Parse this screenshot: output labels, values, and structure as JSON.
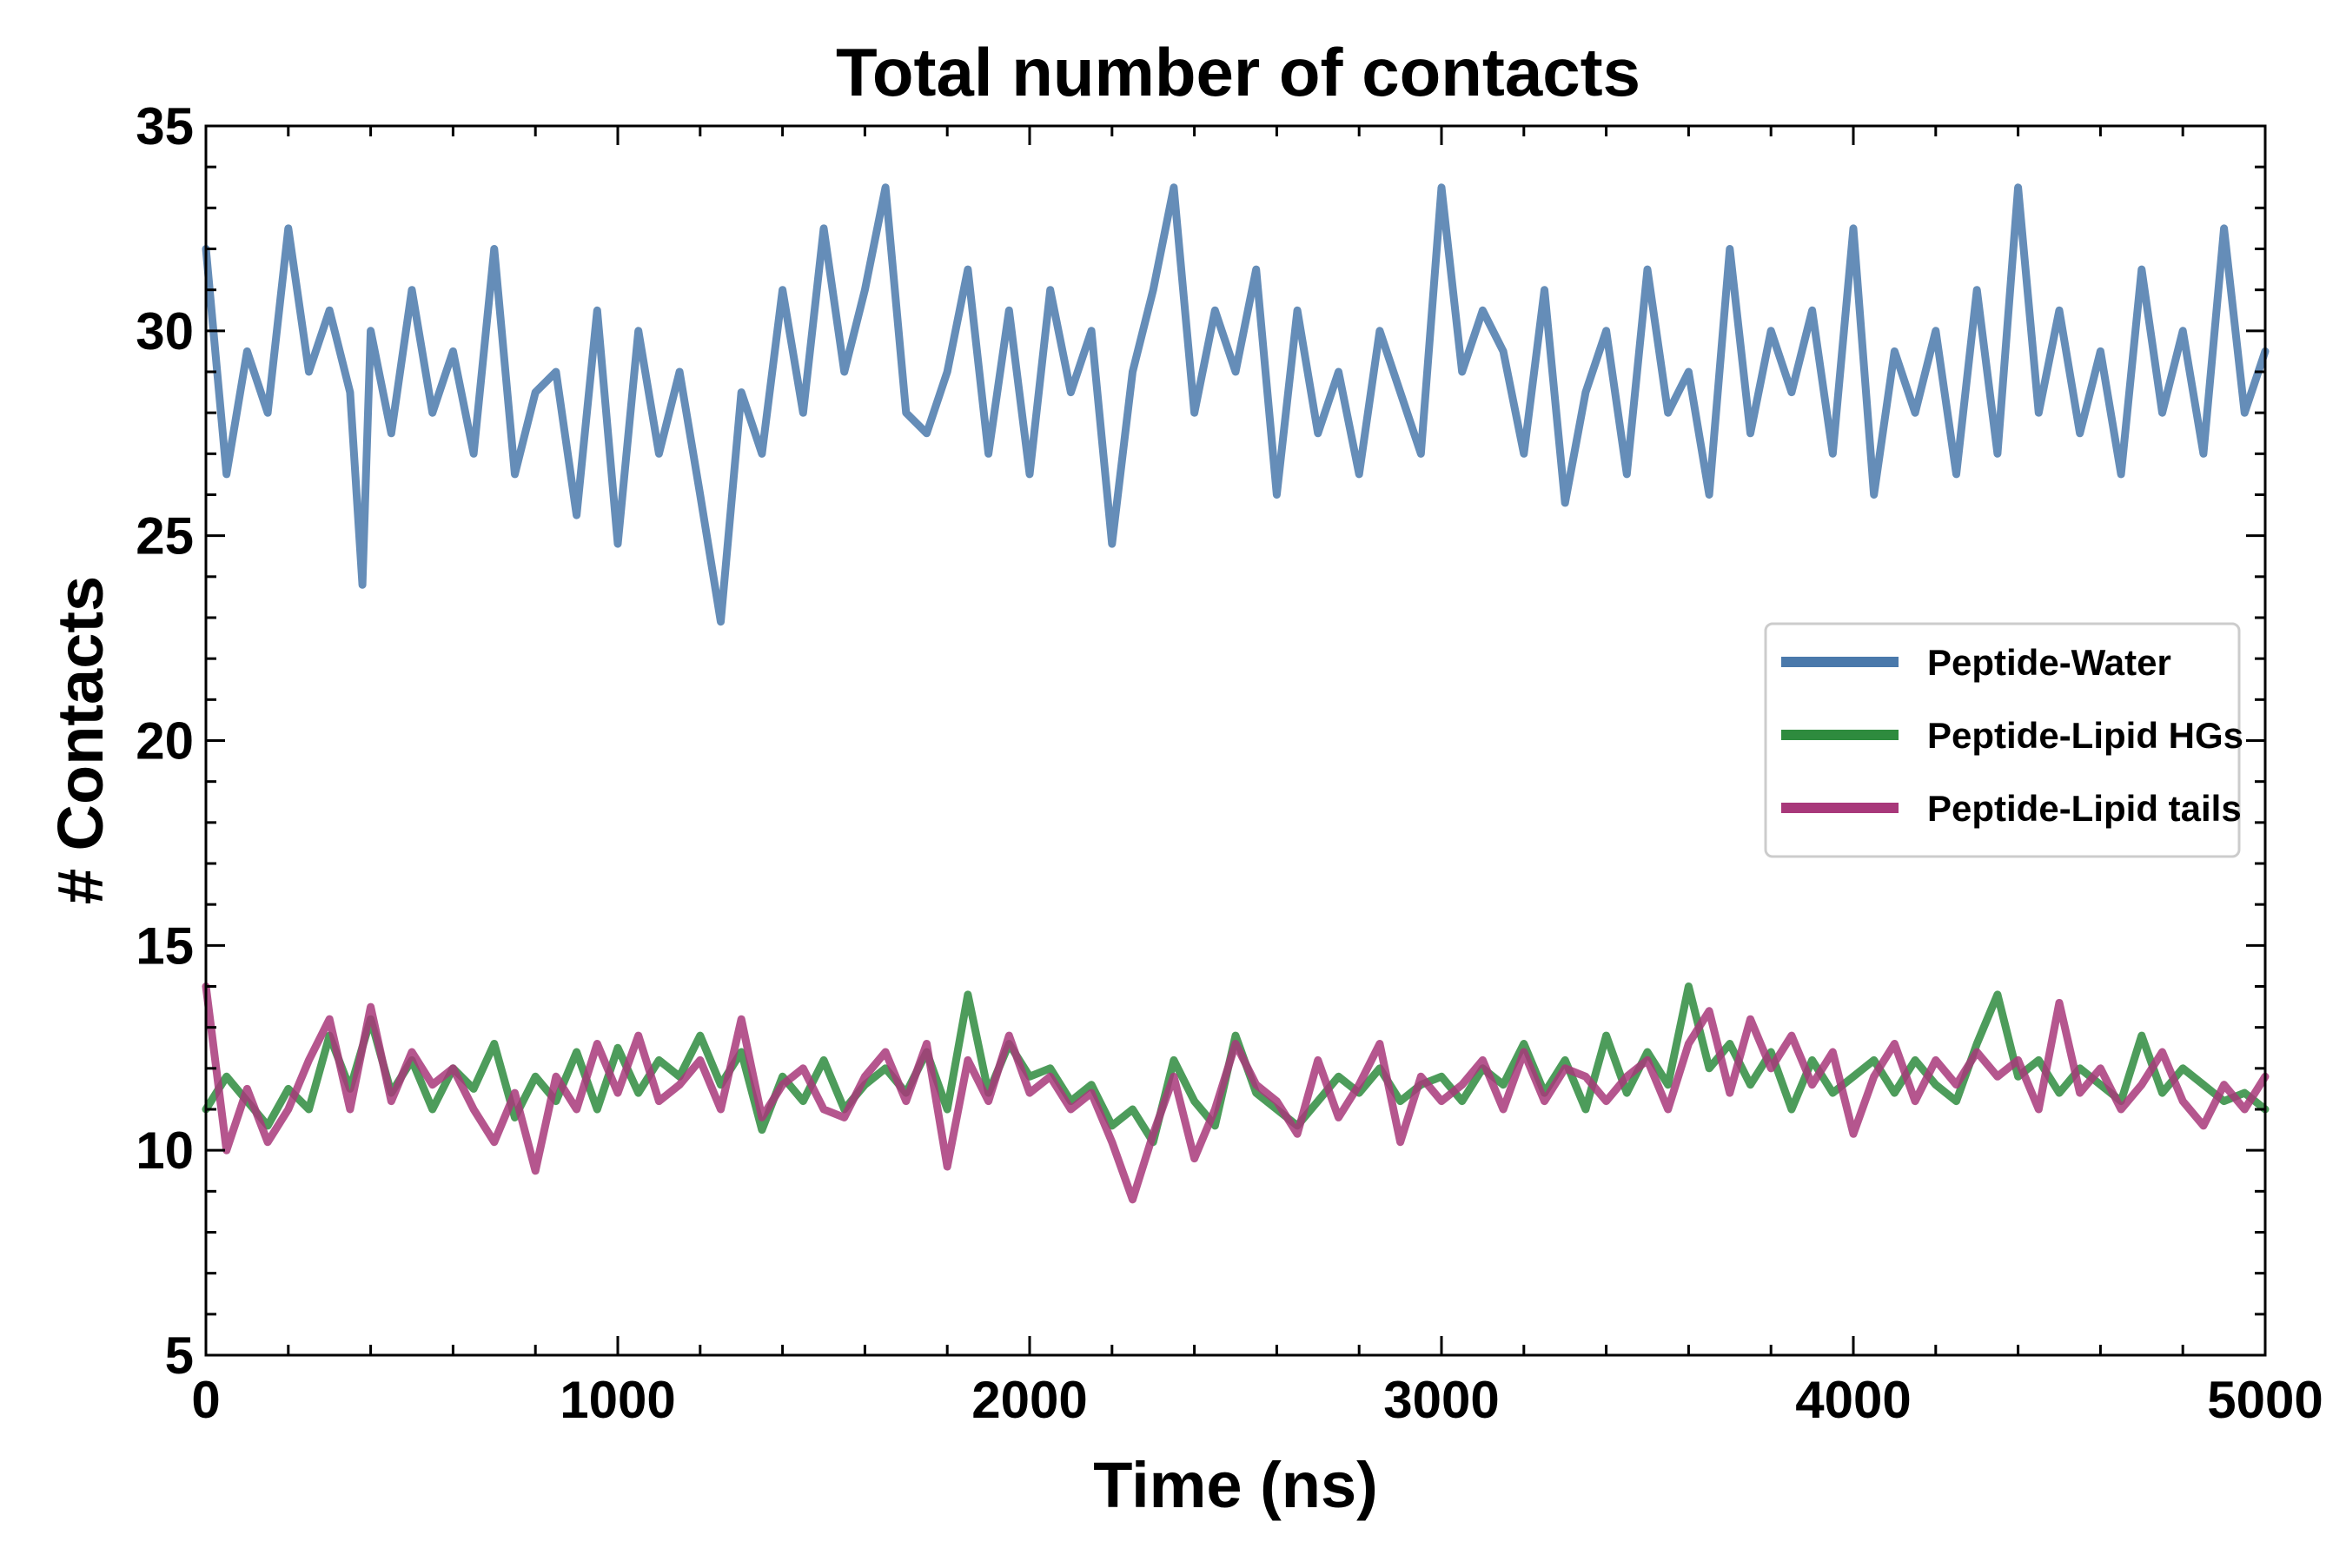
{
  "chart_data": {
    "type": "line",
    "title": "Total number of contacts",
    "xlabel": "Time (ns)",
    "ylabel": "# Contacts",
    "xlim": [
      0,
      5000
    ],
    "ylim": [
      5,
      35
    ],
    "xticks": [
      0,
      1000,
      2000,
      3000,
      4000,
      5000
    ],
    "xtick_labels": [
      "0",
      "1000",
      "2000",
      "3000",
      "4000",
      "5000"
    ],
    "yticks": [
      5,
      10,
      15,
      20,
      25,
      30,
      35
    ],
    "ytick_labels": [
      "5",
      "10",
      "15",
      "20",
      "25",
      "30",
      "35"
    ],
    "grid": false,
    "legend_position": "center-right",
    "series": [
      {
        "name": "Peptide-Water",
        "color": "#4a79ab",
        "x": [
          0,
          50,
          100,
          150,
          200,
          250,
          300,
          350,
          380,
          400,
          450,
          500,
          550,
          600,
          650,
          700,
          750,
          800,
          850,
          900,
          950,
          1000,
          1050,
          1100,
          1150,
          1200,
          1250,
          1300,
          1350,
          1400,
          1450,
          1500,
          1550,
          1600,
          1650,
          1700,
          1750,
          1800,
          1850,
          1900,
          1950,
          2000,
          2050,
          2100,
          2150,
          2200,
          2250,
          2300,
          2350,
          2400,
          2450,
          2500,
          2550,
          2600,
          2650,
          2700,
          2750,
          2800,
          2850,
          2900,
          2950,
          3000,
          3050,
          3100,
          3150,
          3200,
          3250,
          3300,
          3350,
          3400,
          3450,
          3500,
          3550,
          3600,
          3650,
          3700,
          3750,
          3800,
          3850,
          3900,
          3950,
          4000,
          4050,
          4100,
          4150,
          4200,
          4250,
          4300,
          4350,
          4400,
          4450,
          4500,
          4550,
          4600,
          4650,
          4700,
          4750,
          4800,
          4850,
          4900,
          4950,
          5000
        ],
        "y": [
          32,
          26.5,
          29.5,
          28,
          32.5,
          29,
          30.5,
          28.5,
          23.8,
          30,
          27.5,
          31,
          28,
          29.5,
          27,
          32,
          26.5,
          28.5,
          29,
          25.5,
          30.5,
          24.8,
          30,
          27,
          29,
          26,
          22.9,
          28.5,
          27,
          31,
          28,
          32.5,
          29,
          31,
          33.5,
          28,
          27.5,
          29,
          31.5,
          27,
          30.5,
          26.5,
          31,
          28.5,
          30,
          24.8,
          29,
          31,
          33.5,
          28,
          30.5,
          29,
          31.5,
          26,
          30.5,
          27.5,
          29,
          26.5,
          30,
          28.5,
          27,
          33.5,
          29,
          30.5,
          29.5,
          27,
          31,
          25.8,
          28.5,
          30,
          26.5,
          31.5,
          28,
          29,
          26,
          32,
          27.5,
          30,
          28.5,
          30.5,
          27,
          32.5,
          26,
          29.5,
          28,
          30,
          26.5,
          31,
          27,
          33.5,
          28,
          30.5,
          27.5,
          29.5,
          26.5,
          31.5,
          28,
          30,
          27,
          32.5,
          28,
          29.5
        ]
      },
      {
        "name": "Peptide-Lipid HGs",
        "color": "#2e8b3e",
        "x": [
          0,
          50,
          100,
          150,
          200,
          250,
          300,
          350,
          400,
          450,
          500,
          550,
          600,
          650,
          700,
          750,
          800,
          850,
          900,
          950,
          1000,
          1050,
          1100,
          1150,
          1200,
          1250,
          1300,
          1350,
          1400,
          1450,
          1500,
          1550,
          1600,
          1650,
          1700,
          1750,
          1800,
          1850,
          1900,
          1950,
          2000,
          2050,
          2100,
          2150,
          2200,
          2250,
          2300,
          2350,
          2400,
          2450,
          2500,
          2550,
          2600,
          2650,
          2700,
          2750,
          2800,
          2850,
          2900,
          2950,
          3000,
          3050,
          3100,
          3150,
          3200,
          3250,
          3300,
          3350,
          3400,
          3450,
          3500,
          3550,
          3600,
          3650,
          3700,
          3750,
          3800,
          3850,
          3900,
          3950,
          4000,
          4050,
          4100,
          4150,
          4200,
          4250,
          4300,
          4350,
          4400,
          4450,
          4500,
          4550,
          4600,
          4650,
          4700,
          4750,
          4800,
          4850,
          4900,
          4950,
          5000
        ],
        "y": [
          11,
          11.8,
          11.2,
          10.6,
          11.5,
          11,
          12.8,
          11.5,
          13.2,
          11.4,
          12.2,
          11,
          12,
          11.5,
          12.6,
          10.8,
          11.8,
          11.2,
          12.4,
          11,
          12.5,
          11.4,
          12.2,
          11.8,
          12.8,
          11.6,
          12.4,
          10.5,
          11.8,
          11.2,
          12.2,
          11,
          11.6,
          12,
          11.4,
          12.4,
          11,
          13.8,
          11.4,
          12.6,
          11.8,
          12,
          11.2,
          11.6,
          10.6,
          11,
          10.2,
          12.2,
          11.2,
          10.6,
          12.8,
          11.4,
          11,
          10.6,
          11.2,
          11.8,
          11.4,
          12,
          11.2,
          11.6,
          11.8,
          11.2,
          12,
          11.6,
          12.6,
          11.4,
          12.2,
          11,
          12.8,
          11.4,
          12.4,
          11.6,
          14,
          12,
          12.6,
          11.6,
          12.4,
          11,
          12.2,
          11.4,
          11.8,
          12.2,
          11.4,
          12.2,
          11.6,
          11.2,
          12.6,
          13.8,
          11.8,
          12.2,
          11.4,
          12,
          11.6,
          11.2,
          12.8,
          11.4,
          12,
          11.6,
          11.2,
          11.4,
          11
        ]
      },
      {
        "name": "Peptide-Lipid tails",
        "color": "#a8387a",
        "x": [
          0,
          50,
          100,
          150,
          200,
          250,
          300,
          350,
          400,
          450,
          500,
          550,
          600,
          650,
          700,
          750,
          800,
          850,
          900,
          950,
          1000,
          1050,
          1100,
          1150,
          1200,
          1250,
          1300,
          1350,
          1400,
          1450,
          1500,
          1550,
          1600,
          1650,
          1700,
          1750,
          1800,
          1850,
          1900,
          1950,
          2000,
          2050,
          2100,
          2150,
          2200,
          2250,
          2300,
          2350,
          2400,
          2450,
          2500,
          2550,
          2600,
          2650,
          2700,
          2750,
          2800,
          2850,
          2900,
          2950,
          3000,
          3050,
          3100,
          3150,
          3200,
          3250,
          3300,
          3350,
          3400,
          3450,
          3500,
          3550,
          3600,
          3650,
          3700,
          3750,
          3800,
          3850,
          3900,
          3950,
          4000,
          4050,
          4100,
          4150,
          4200,
          4250,
          4300,
          4350,
          4400,
          4450,
          4500,
          4550,
          4600,
          4650,
          4700,
          4750,
          4800,
          4850,
          4900,
          4950,
          5000
        ],
        "y": [
          14,
          10,
          11.5,
          10.2,
          11,
          12.2,
          13.2,
          11,
          13.5,
          11.2,
          12.4,
          11.6,
          12,
          11,
          10.2,
          11.4,
          9.5,
          11.8,
          11,
          12.6,
          11.4,
          12.8,
          11.2,
          11.6,
          12.2,
          11,
          13.2,
          10.8,
          11.6,
          12,
          11,
          10.8,
          11.8,
          12.4,
          11.2,
          12.6,
          9.6,
          12.2,
          11.2,
          12.8,
          11.4,
          11.8,
          11,
          11.4,
          10.2,
          8.8,
          10.4,
          11.8,
          9.8,
          11,
          12.6,
          11.6,
          11.2,
          10.4,
          12.2,
          10.8,
          11.6,
          12.6,
          10.2,
          11.8,
          11.2,
          11.6,
          12.2,
          11,
          12.4,
          11.2,
          12,
          11.8,
          11.2,
          11.8,
          12.2,
          11,
          12.6,
          13.4,
          11.4,
          13.2,
          12,
          12.8,
          11.6,
          12.4,
          10.4,
          11.8,
          12.6,
          11.2,
          12.2,
          11.6,
          12.4,
          11.8,
          12.2,
          11,
          13.6,
          11.4,
          12,
          11,
          11.6,
          12.4,
          11.2,
          10.6,
          11.6,
          11,
          11.8
        ]
      }
    ]
  }
}
